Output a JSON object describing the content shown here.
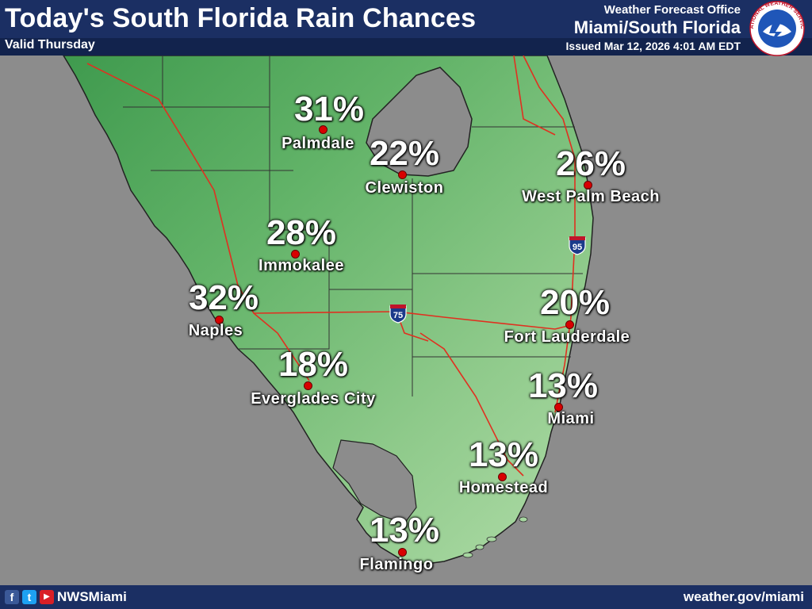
{
  "header": {
    "title": "Today's South Florida Rain Chances",
    "valid": "Valid Thursday",
    "office": "Weather Forecast Office",
    "office_name": "Miami/South Florida",
    "issued": "Issued Mar 12, 2026 4:01 AM EDT",
    "logo_text": "NATIONAL WEATHER SERVICE"
  },
  "cities": [
    {
      "name": "Palmdale",
      "pct": "31%"
    },
    {
      "name": "Clewiston",
      "pct": "22%"
    },
    {
      "name": "West Palm Beach",
      "pct": "26%"
    },
    {
      "name": "Immokalee",
      "pct": "28%"
    },
    {
      "name": "Naples",
      "pct": "32%"
    },
    {
      "name": "Fort Lauderdale",
      "pct": "20%"
    },
    {
      "name": "Everglades City",
      "pct": "18%"
    },
    {
      "name": "Miami",
      "pct": "13%"
    },
    {
      "name": "Homestead",
      "pct": "13%"
    },
    {
      "name": "Flamingo",
      "pct": "13%"
    }
  ],
  "highways": {
    "i75": "75",
    "i95": "95"
  },
  "footer": {
    "handle": "NWSMiami",
    "site": "weather.gov/miami",
    "facebook_icon": "f",
    "twitter_icon": "t",
    "youtube_icon": "▶"
  },
  "colors": {
    "header_bg": "#1b2f63",
    "water": "#8c8c8c",
    "land_dark": "#4fa158",
    "land_light": "#a6d6a0",
    "road": "#e03020",
    "city_dot": "#d80000"
  }
}
